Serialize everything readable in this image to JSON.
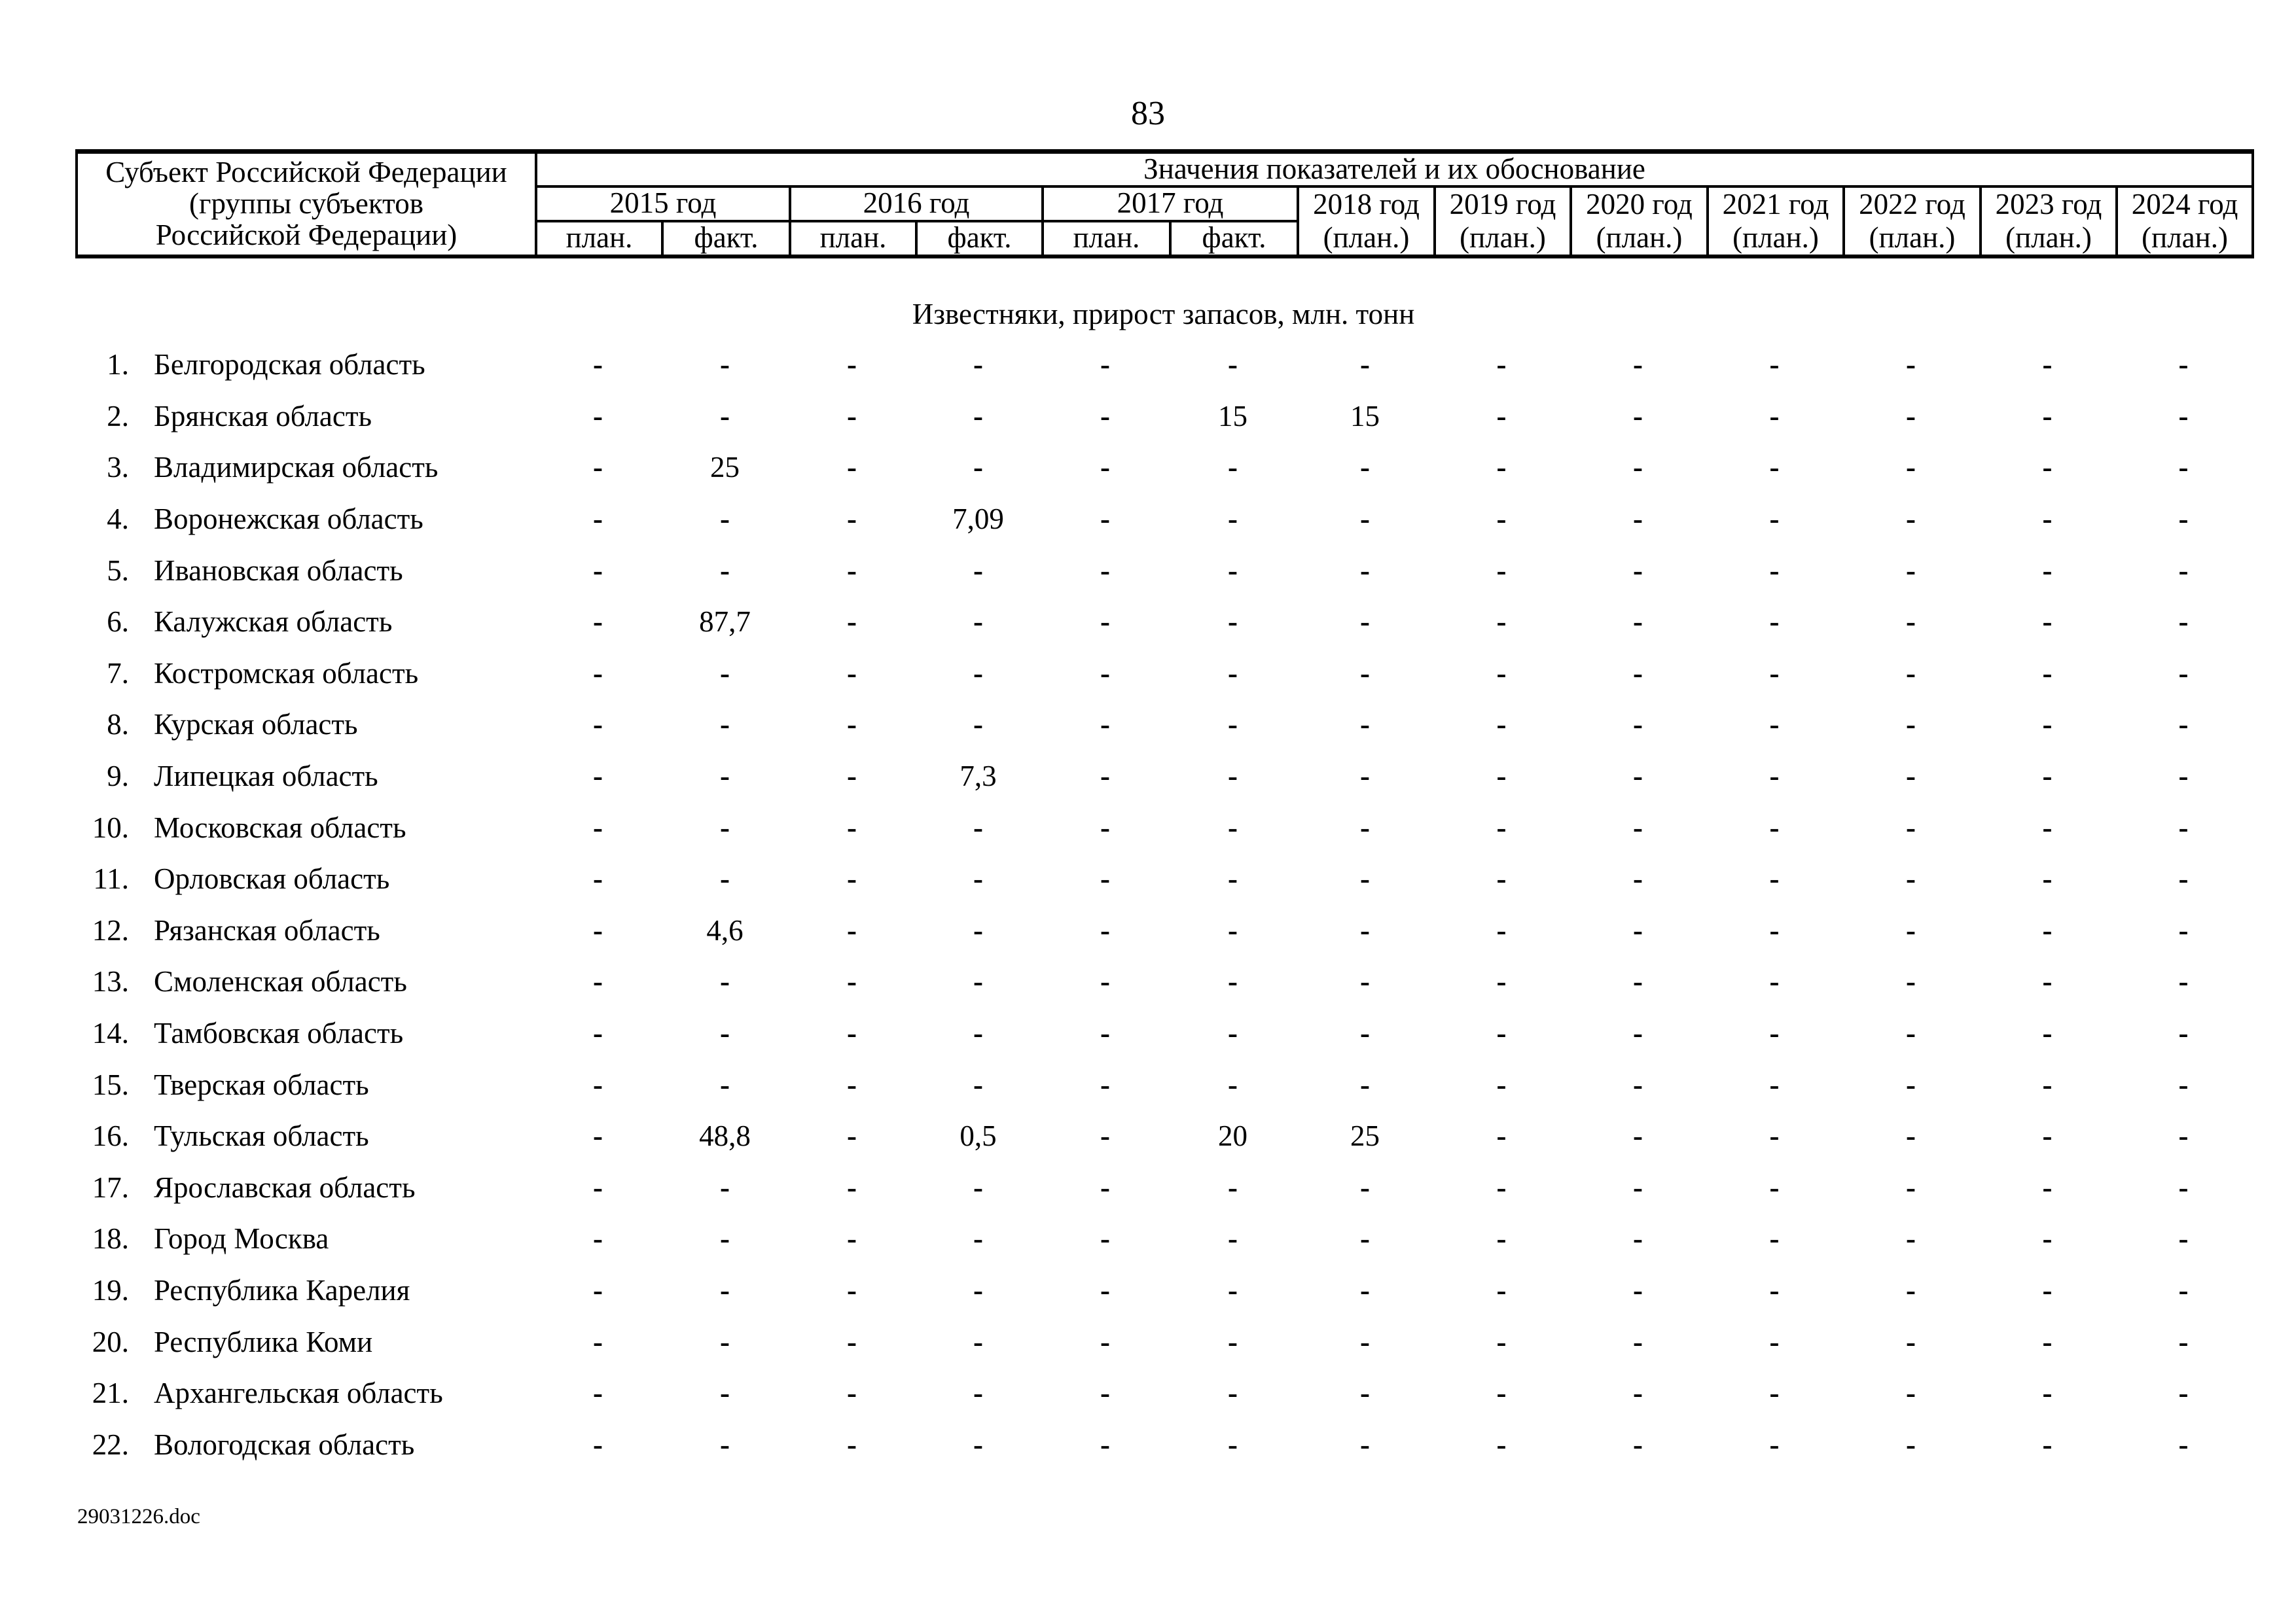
{
  "page": {
    "number": "83",
    "footer_filename": "29031226.doc"
  },
  "table": {
    "subject_header": "Субъект Российской Федерации\n(группы субъектов\nРоссийской Федерации)",
    "values_header": "Значения показателей и их обоснование",
    "year_groups": [
      {
        "label": "2015 год",
        "sub": [
          "план.",
          "факт."
        ]
      },
      {
        "label": "2016 год",
        "sub": [
          "план.",
          "факт."
        ]
      },
      {
        "label": "2017 год",
        "sub": [
          "план.",
          "факт."
        ]
      },
      {
        "label": "2018 год",
        "plan": "(план.)"
      },
      {
        "label": "2019 год",
        "plan": "(план.)"
      },
      {
        "label": "2020 год",
        "plan": "(план.)"
      },
      {
        "label": "2021 год",
        "plan": "(план.)"
      },
      {
        "label": "2022 год",
        "plan": "(план.)"
      },
      {
        "label": "2023 год",
        "plan": "(план.)"
      },
      {
        "label": "2024 год",
        "plan": "(план.)"
      }
    ],
    "section_title": "Известняки, прирост запасов, млн. тонн",
    "rows": [
      {
        "num": "1.",
        "name": "Белгородская область",
        "values": [
          "-",
          "-",
          "-",
          "-",
          "-",
          "-",
          "-",
          "-",
          "-",
          "-",
          "-",
          "-",
          "-"
        ]
      },
      {
        "num": "2.",
        "name": "Брянская область",
        "values": [
          "-",
          "-",
          "-",
          "-",
          "-",
          "15",
          "15",
          "-",
          "-",
          "-",
          "-",
          "-",
          "-"
        ]
      },
      {
        "num": "3.",
        "name": "Владимирская область",
        "values": [
          "-",
          "25",
          "-",
          "-",
          "-",
          "-",
          "-",
          "-",
          "-",
          "-",
          "-",
          "-",
          "-"
        ]
      },
      {
        "num": "4.",
        "name": "Воронежская область",
        "values": [
          "-",
          "-",
          "-",
          "7,09",
          "-",
          "-",
          "-",
          "-",
          "-",
          "-",
          "-",
          "-",
          "-"
        ]
      },
      {
        "num": "5.",
        "name": "Ивановская область",
        "values": [
          "-",
          "-",
          "-",
          "-",
          "-",
          "-",
          "-",
          "-",
          "-",
          "-",
          "-",
          "-",
          "-"
        ]
      },
      {
        "num": "6.",
        "name": "Калужская область",
        "values": [
          "-",
          "87,7",
          "-",
          "-",
          "-",
          "-",
          "-",
          "-",
          "-",
          "-",
          "-",
          "-",
          "-"
        ]
      },
      {
        "num": "7.",
        "name": "Костромская область",
        "values": [
          "-",
          "-",
          "-",
          "-",
          "-",
          "-",
          "-",
          "-",
          "-",
          "-",
          "-",
          "-",
          "-"
        ]
      },
      {
        "num": "8.",
        "name": "Курская область",
        "values": [
          "-",
          "-",
          "-",
          "-",
          "-",
          "-",
          "-",
          "-",
          "-",
          "-",
          "-",
          "-",
          "-"
        ]
      },
      {
        "num": "9.",
        "name": "Липецкая область",
        "values": [
          "-",
          "-",
          "-",
          "7,3",
          "-",
          "-",
          "-",
          "-",
          "-",
          "-",
          "-",
          "-",
          "-"
        ]
      },
      {
        "num": "10.",
        "name": "Московская область",
        "values": [
          "-",
          "-",
          "-",
          "-",
          "-",
          "-",
          "-",
          "-",
          "-",
          "-",
          "-",
          "-",
          "-"
        ]
      },
      {
        "num": "11.",
        "name": "Орловская область",
        "values": [
          "-",
          "-",
          "-",
          "-",
          "-",
          "-",
          "-",
          "-",
          "-",
          "-",
          "-",
          "-",
          "-"
        ]
      },
      {
        "num": "12.",
        "name": "Рязанская область",
        "values": [
          "-",
          "4,6",
          "-",
          "-",
          "-",
          "-",
          "-",
          "-",
          "-",
          "-",
          "-",
          "-",
          "-"
        ]
      },
      {
        "num": "13.",
        "name": "Смоленская область",
        "values": [
          "-",
          "-",
          "-",
          "-",
          "-",
          "-",
          "-",
          "-",
          "-",
          "-",
          "-",
          "-",
          "-"
        ]
      },
      {
        "num": "14.",
        "name": "Тамбовская область",
        "values": [
          "-",
          "-",
          "-",
          "-",
          "-",
          "-",
          "-",
          "-",
          "-",
          "-",
          "-",
          "-",
          "-"
        ]
      },
      {
        "num": "15.",
        "name": "Тверская область",
        "values": [
          "-",
          "-",
          "-",
          "-",
          "-",
          "-",
          "-",
          "-",
          "-",
          "-",
          "-",
          "-",
          "-"
        ]
      },
      {
        "num": "16.",
        "name": "Тульская область",
        "values": [
          "-",
          "48,8",
          "-",
          "0,5",
          "-",
          "20",
          "25",
          "-",
          "-",
          "-",
          "-",
          "-",
          "-"
        ]
      },
      {
        "num": "17.",
        "name": "Ярославская область",
        "values": [
          "-",
          "-",
          "-",
          "-",
          "-",
          "-",
          "-",
          "-",
          "-",
          "-",
          "-",
          "-",
          "-"
        ]
      },
      {
        "num": "18.",
        "name": "Город Москва",
        "values": [
          "-",
          "-",
          "-",
          "-",
          "-",
          "-",
          "-",
          "-",
          "-",
          "-",
          "-",
          "-",
          "-"
        ]
      },
      {
        "num": "19.",
        "name": "Республика Карелия",
        "values": [
          "-",
          "-",
          "-",
          "-",
          "-",
          "-",
          "-",
          "-",
          "-",
          "-",
          "-",
          "-",
          "-"
        ]
      },
      {
        "num": "20.",
        "name": "Республика Коми",
        "values": [
          "-",
          "-",
          "-",
          "-",
          "-",
          "-",
          "-",
          "-",
          "-",
          "-",
          "-",
          "-",
          "-"
        ]
      },
      {
        "num": "21.",
        "name": "Архангельская область",
        "values": [
          "-",
          "-",
          "-",
          "-",
          "-",
          "-",
          "-",
          "-",
          "-",
          "-",
          "-",
          "-",
          "-"
        ]
      },
      {
        "num": "22.",
        "name": "Вологодская область",
        "values": [
          "-",
          "-",
          "-",
          "-",
          "-",
          "-",
          "-",
          "-",
          "-",
          "-",
          "-",
          "-",
          "-"
        ]
      }
    ]
  }
}
